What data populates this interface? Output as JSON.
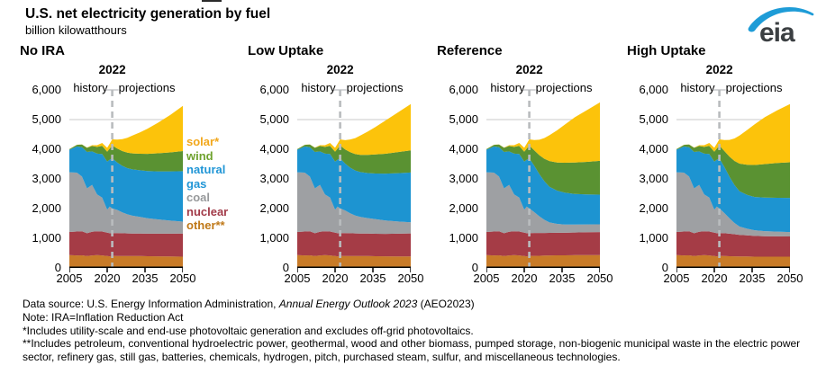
{
  "header": {
    "title": "U.S. net electricity generation by fuel",
    "subtitle": "billion kilowatthours",
    "logo_text": "eia"
  },
  "annotations": {
    "year": "2022",
    "history": "history",
    "projections": "projections"
  },
  "legend": [
    {
      "key": "solar",
      "label": "solar*",
      "color": "#F2A71B"
    },
    {
      "key": "wind",
      "label": "wind",
      "color": "#6FA22E"
    },
    {
      "key": "gas",
      "label": "natural gas",
      "color": "#2196D6"
    },
    {
      "key": "coal",
      "label": "coal",
      "color": "#97999B"
    },
    {
      "key": "nuclear",
      "label": "nuclear",
      "color": "#A23B49"
    },
    {
      "key": "other",
      "label": "other**",
      "color": "#BF7817"
    }
  ],
  "chart_data": {
    "type": "area",
    "title": "U.S. net electricity generation by fuel",
    "unit": "billion kilowatthours",
    "stack_order": [
      "other",
      "nuclear",
      "coal",
      "gas",
      "wind",
      "solar"
    ],
    "colors": {
      "other": "#C87B28",
      "nuclear": "#A53C46",
      "coal": "#9EA0A3",
      "gas": "#1D94D1",
      "wind": "#5A9232",
      "solar": "#FCC30B"
    },
    "xlim": [
      2005,
      2050
    ],
    "ylim": [
      0,
      6000
    ],
    "yticks": [
      0,
      1000,
      2000,
      3000,
      4000,
      5000,
      6000
    ],
    "xticks": [
      2005,
      2020,
      2035,
      2050
    ],
    "gridline_values": [
      5000
    ],
    "divider_year": 2022,
    "history_years": [
      2005,
      2008,
      2010,
      2012,
      2014,
      2016,
      2018,
      2020,
      2021,
      2022
    ],
    "history": {
      "other": [
        430,
        420,
        425,
        400,
        420,
        430,
        420,
        400,
        390,
        405
      ],
      "nuclear": [
        782,
        806,
        807,
        769,
        797,
        806,
        807,
        790,
        780,
        772
      ],
      "coal": [
        2013,
        1986,
        1847,
        1514,
        1582,
        1239,
        1146,
        774,
        898,
        828
      ],
      "gas": [
        761,
        883,
        988,
        1225,
        1127,
        1378,
        1468,
        1617,
        1579,
        1689
      ],
      "wind": [
        18,
        55,
        95,
        140,
        182,
        227,
        275,
        338,
        378,
        434
      ],
      "solar": [
        1,
        2,
        2,
        9,
        28,
        56,
        96,
        131,
        164,
        204
      ]
    },
    "projection_years": [
      2024,
      2026,
      2028,
      2030,
      2033,
      2036,
      2040,
      2045,
      2050
    ],
    "panels": [
      {
        "title": "No IRA",
        "projections": {
          "other": [
            400,
            400,
            400,
            400,
            400,
            395,
            390,
            385,
            380
          ],
          "nuclear": [
            775,
            770,
            765,
            760,
            760,
            760,
            765,
            770,
            780
          ],
          "coal": [
            780,
            700,
            640,
            600,
            560,
            520,
            480,
            440,
            400
          ],
          "gas": [
            1600,
            1570,
            1560,
            1560,
            1570,
            1590,
            1620,
            1660,
            1700
          ],
          "wind": [
            470,
            500,
            520,
            540,
            560,
            580,
            610,
            640,
            680
          ],
          "solar": [
            300,
            400,
            500,
            600,
            720,
            850,
            1020,
            1260,
            1520
          ]
        }
      },
      {
        "title": "Low Uptake",
        "projections": {
          "other": [
            400,
            400,
            400,
            400,
            400,
            395,
            390,
            385,
            385
          ],
          "nuclear": [
            775,
            770,
            765,
            760,
            758,
            758,
            760,
            770,
            780
          ],
          "coal": [
            760,
            670,
            600,
            560,
            520,
            490,
            450,
            410,
            370
          ],
          "gas": [
            1580,
            1540,
            1520,
            1510,
            1520,
            1540,
            1580,
            1630,
            1680
          ],
          "wind": [
            480,
            520,
            550,
            580,
            610,
            640,
            670,
            710,
            750
          ],
          "solar": [
            310,
            430,
            540,
            650,
            790,
            930,
            1120,
            1340,
            1560
          ]
        }
      },
      {
        "title": "Reference",
        "projections": {
          "other": [
            405,
            410,
            415,
            420,
            425,
            425,
            430,
            430,
            430
          ],
          "nuclear": [
            775,
            770,
            765,
            762,
            760,
            760,
            765,
            772,
            780
          ],
          "coal": [
            700,
            560,
            440,
            350,
            300,
            280,
            270,
            265,
            260
          ],
          "gas": [
            1560,
            1420,
            1300,
            1200,
            1120,
            1070,
            1030,
            1010,
            1000
          ],
          "wind": [
            520,
            640,
            760,
            870,
            950,
            1010,
            1060,
            1100,
            1140
          ],
          "solar": [
            350,
            520,
            700,
            870,
            1080,
            1280,
            1520,
            1750,
            1970
          ]
        }
      },
      {
        "title": "High Uptake",
        "projections": {
          "other": [
            400,
            395,
            390,
            385,
            385,
            380,
            380,
            380,
            380
          ],
          "nuclear": [
            770,
            760,
            745,
            730,
            715,
            700,
            690,
            685,
            680
          ],
          "coal": [
            680,
            520,
            380,
            280,
            220,
            190,
            170,
            160,
            150
          ],
          "gas": [
            1550,
            1400,
            1280,
            1190,
            1140,
            1120,
            1130,
            1140,
            1150
          ],
          "wind": [
            540,
            680,
            810,
            930,
            1020,
            1080,
            1130,
            1170,
            1200
          ],
          "solar": [
            370,
            560,
            760,
            950,
            1170,
            1370,
            1580,
            1780,
            1960
          ]
        }
      }
    ]
  },
  "footnotes": {
    "source_prefix": "Data source: U.S. Energy Information Administration, ",
    "source_italic": "Annual Energy Outlook 2023",
    "source_suffix": " (AEO2023)",
    "note": "Note: IRA=Inflation Reduction Act",
    "fn1": "*Includes utility-scale and end-use photovoltaic generation and excludes off-grid photovoltaics.",
    "fn2": "**Includes petroleum, conventional hydroelectric power, geothermal, wood and other biomass, pumped storage, non-biogenic municipal waste in the electric power sector, refinery gas, still gas, batteries, chemicals, hydrogen, pitch, purchased steam, sulfur, and miscellaneous technologies."
  }
}
